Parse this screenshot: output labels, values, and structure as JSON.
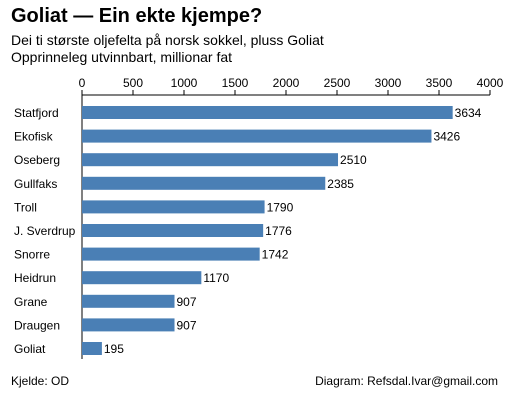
{
  "header": {
    "title": "Goliat — Ein ekte kjempe?",
    "subtitle_line1": "Dei ti største oljefelta på norsk sokkel, pluss Goliat",
    "subtitle_line2": "Opprinneleg utvinnbart, millionar fat"
  },
  "footer": {
    "source": "Kjelde: OD",
    "credit": "Diagram: Refsdal.Ivar@gmail.com"
  },
  "chart_data": {
    "type": "bar",
    "orientation": "horizontal",
    "categories": [
      "Statfjord",
      "Ekofisk",
      "Oseberg",
      "Gullfaks",
      "Troll",
      "J. Sverdrup",
      "Snorre",
      "Heidrun",
      "Grane",
      "Draugen",
      "Goliat"
    ],
    "values": [
      3634,
      3426,
      2510,
      2385,
      1790,
      1776,
      1742,
      1170,
      907,
      907,
      195
    ],
    "xlim": [
      0,
      4000
    ],
    "xticks": [
      0,
      500,
      1000,
      1500,
      2000,
      2500,
      3000,
      3500,
      4000
    ],
    "axis_position": "top",
    "data_labels": true,
    "grid": false,
    "bar_color": "#4a7fb5"
  }
}
